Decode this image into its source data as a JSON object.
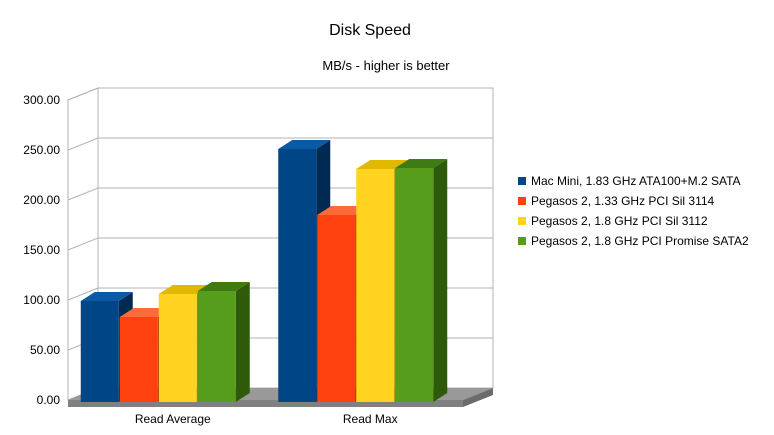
{
  "chart_data": {
    "type": "bar",
    "title": "Disk Speed",
    "subtitle": "MB/s - higher is better",
    "xlabel": "",
    "ylabel": "",
    "categories": [
      "Read Average",
      "Read Max"
    ],
    "series": [
      {
        "name": "Mac Mini, 1.83 GHz ATA100+M.2 SATA",
        "values": [
          107,
          259
        ],
        "color": "#004586",
        "dark": "#002a52",
        "top": "#0a5aa6"
      },
      {
        "name": "Pegasos 2, 1.33 GHz PCI Sil 3114",
        "values": [
          91,
          193
        ],
        "color": "#ff420e",
        "dark": "#b02800",
        "top": "#ff6a3a"
      },
      {
        "name": "Pegasos 2, 1.8 GHz PCI Sil 3112",
        "values": [
          114,
          239
        ],
        "color": "#ffd320",
        "dark": "#a38600",
        "top": "#e0b800"
      },
      {
        "name": "Pegasos 2, 1.8 GHz PCI Promise SATA2",
        "values": [
          117,
          240
        ],
        "color": "#579d1c",
        "dark": "#2f5a0a",
        "top": "#3f7a12"
      }
    ],
    "yticks": [
      "0.00",
      "50.00",
      "100.00",
      "150.00",
      "200.00",
      "250.00",
      "300.00"
    ],
    "ylim": [
      0,
      300
    ],
    "grid": true,
    "legend_position": "right"
  }
}
